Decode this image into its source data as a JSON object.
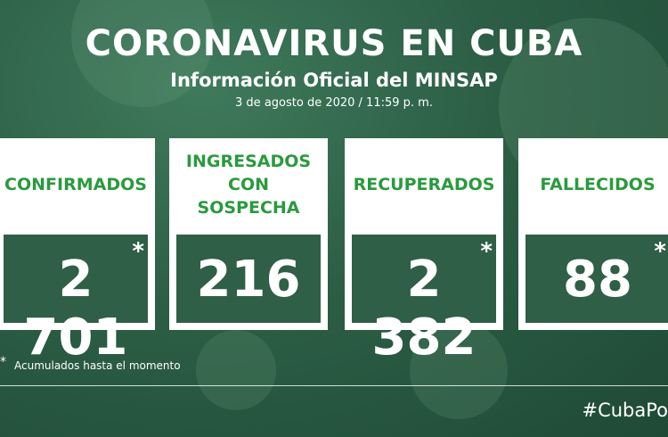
{
  "header": {
    "title": "CORONAVIRUS EN CUBA",
    "subtitle": "Información Oficial del MINSAP",
    "date": "3 de agosto de 2020 / 11:59 p. m."
  },
  "cards": [
    {
      "label": "CONFIRMADOS",
      "value": "2 701",
      "marker": "*"
    },
    {
      "label": "INGRESADOS CON SOSPECHA",
      "value": "216"
    },
    {
      "label": "RECUPERADOS",
      "value": "2 382",
      "marker": "*"
    },
    {
      "label": "FALLECIDOS",
      "value": "88",
      "marker": "*"
    }
  ],
  "footnote": {
    "marker": "*",
    "text": "Acumulados hasta el momento"
  },
  "hashtag": "#CubaPo"
}
